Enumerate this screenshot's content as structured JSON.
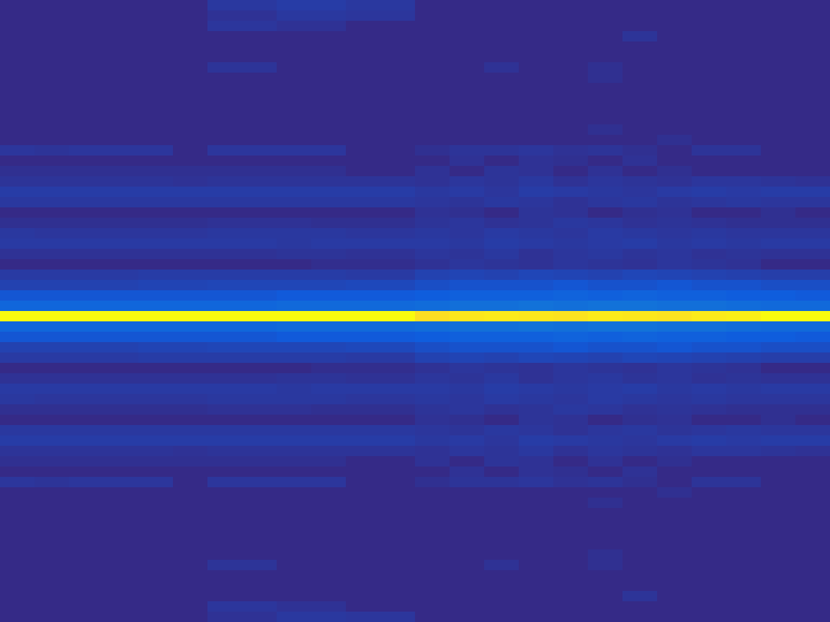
{
  "chart_data": {
    "type": "heatmap",
    "tick_labels": false,
    "color_range": [
      0,
      1
    ],
    "cells": [
      [
        0,
        0,
        0,
        0,
        0,
        0,
        0.035,
        0.035,
        0.045,
        0.045,
        0.035,
        0.035,
        0,
        0,
        0,
        0,
        0,
        0,
        0,
        0,
        0,
        0,
        0,
        0
      ],
      [
        0,
        0,
        0,
        0,
        0,
        0,
        0.02,
        0.02,
        0.035,
        0.035,
        0.03,
        0.03,
        0,
        0,
        0,
        0,
        0,
        0,
        0,
        0,
        0,
        0,
        0,
        0
      ],
      [
        0,
        0,
        0,
        0,
        0,
        0,
        0.03,
        0.03,
        0.02,
        0.02,
        0,
        0,
        0,
        0,
        0,
        0,
        0,
        0,
        0,
        0,
        0,
        0,
        0,
        0
      ],
      [
        0,
        0,
        0,
        0,
        0,
        0,
        0,
        0,
        0,
        0,
        0,
        0,
        0,
        0,
        0,
        0,
        0,
        0,
        0.025,
        0,
        0,
        0,
        0,
        0
      ],
      [
        0,
        0,
        0,
        0,
        0,
        0,
        0,
        0,
        0,
        0,
        0,
        0,
        0,
        0,
        0,
        0,
        0,
        0,
        0,
        0,
        0,
        0,
        0,
        0
      ],
      [
        0,
        0,
        0,
        0,
        0,
        0,
        0,
        0,
        0,
        0,
        0,
        0,
        0,
        0,
        0,
        0,
        0,
        0,
        0,
        0,
        0,
        0,
        0,
        0
      ],
      [
        0,
        0,
        0,
        0,
        0,
        0,
        0.025,
        0.025,
        0,
        0,
        0,
        0,
        0,
        0,
        0.02,
        0,
        0,
        0.015,
        0,
        0,
        0,
        0,
        0,
        0
      ],
      [
        0,
        0,
        0,
        0,
        0,
        0,
        0,
        0,
        0,
        0,
        0,
        0,
        0,
        0,
        0,
        0,
        0,
        0.015,
        0,
        0,
        0,
        0,
        0,
        0
      ],
      [
        0,
        0,
        0,
        0,
        0,
        0,
        0,
        0,
        0,
        0,
        0,
        0,
        0,
        0,
        0,
        0,
        0,
        0,
        0,
        0,
        0,
        0,
        0,
        0
      ],
      [
        0,
        0,
        0,
        0,
        0,
        0,
        0,
        0,
        0,
        0,
        0,
        0,
        0,
        0,
        0,
        0,
        0,
        0,
        0,
        0,
        0,
        0,
        0,
        0
      ],
      [
        0,
        0,
        0,
        0,
        0,
        0,
        0,
        0,
        0,
        0,
        0,
        0,
        0,
        0,
        0,
        0,
        0,
        0,
        0,
        0,
        0,
        0,
        0,
        0
      ],
      [
        0,
        0,
        0,
        0,
        0,
        0,
        0,
        0,
        0,
        0,
        0,
        0,
        0,
        0,
        0,
        0,
        0,
        0,
        0,
        0,
        0,
        0,
        0,
        0
      ],
      [
        0,
        0,
        0,
        0,
        0,
        0,
        0,
        0,
        0,
        0,
        0,
        0,
        0,
        0,
        0,
        0,
        0,
        0.015,
        0,
        0,
        0,
        0,
        0,
        0
      ],
      [
        0,
        0,
        0,
        0,
        0,
        0,
        0,
        0,
        0,
        0,
        0,
        0,
        0,
        0,
        0,
        0,
        0,
        0,
        0,
        0.015,
        0,
        0,
        0,
        0
      ],
      [
        0.03,
        0.025,
        0.03,
        0.03,
        0.03,
        0,
        0.03,
        0.03,
        0.03,
        0.03,
        0,
        0,
        0.015,
        0.025,
        0.025,
        0.03,
        0.02,
        0.025,
        0.015,
        0,
        0.025,
        0.025,
        0,
        0
      ],
      [
        0,
        0,
        0,
        0,
        0,
        0,
        0,
        0,
        0,
        0,
        0,
        0,
        0,
        0.02,
        0,
        0.02,
        0.015,
        0,
        0.02,
        0,
        0,
        0,
        0,
        0
      ],
      [
        0.015,
        0.015,
        0.015,
        0.015,
        0.015,
        0.015,
        0.015,
        0.015,
        0.015,
        0.015,
        0,
        0,
        0.02,
        0,
        0.025,
        0.02,
        0,
        0.02,
        0,
        0.015,
        0,
        0,
        0,
        0
      ],
      [
        0.025,
        0.025,
        0.025,
        0.025,
        0.025,
        0.02,
        0.025,
        0.025,
        0.025,
        0.025,
        0.025,
        0.025,
        0.02,
        0.03,
        0.025,
        0.035,
        0.02,
        0.03,
        0.025,
        0.02,
        0.03,
        0.03,
        0.025,
        0.02
      ],
      [
        0.045,
        0.045,
        0.045,
        0.045,
        0.045,
        0.045,
        0.045,
        0.045,
        0.045,
        0.045,
        0.045,
        0.045,
        0.035,
        0.04,
        0.03,
        0.045,
        0.04,
        0.035,
        0.03,
        0.04,
        0.045,
        0.04,
        0.045,
        0.045
      ],
      [
        0.035,
        0.035,
        0.035,
        0.035,
        0.035,
        0.035,
        0.035,
        0.035,
        0.035,
        0.035,
        0.035,
        0.035,
        0.03,
        0.025,
        0.035,
        0.03,
        0.02,
        0.03,
        0.035,
        0.025,
        0.03,
        0.035,
        0.03,
        0.03
      ],
      [
        0,
        0,
        0,
        0,
        0,
        0,
        0,
        0,
        0,
        0,
        0,
        0,
        0.02,
        0.015,
        0,
        0.025,
        0.02,
        0,
        0.015,
        0.02,
        0,
        0,
        0.015,
        0
      ],
      [
        0.015,
        0.015,
        0.015,
        0.015,
        0.015,
        0.015,
        0.02,
        0.02,
        0.02,
        0.015,
        0.015,
        0.015,
        0.025,
        0.03,
        0.02,
        0.025,
        0.035,
        0.03,
        0.02,
        0.025,
        0.02,
        0.015,
        0.015,
        0.015
      ],
      [
        0.035,
        0.03,
        0.03,
        0.03,
        0.03,
        0.03,
        0.035,
        0.035,
        0.035,
        0.035,
        0.03,
        0.03,
        0.035,
        0.03,
        0.04,
        0.035,
        0.03,
        0.04,
        0.035,
        0.03,
        0.035,
        0.03,
        0.03,
        0.03
      ],
      [
        0.04,
        0.04,
        0.04,
        0.04,
        0.04,
        0.04,
        0.04,
        0.04,
        0.035,
        0.04,
        0.04,
        0.04,
        0.04,
        0.035,
        0.045,
        0.04,
        0.035,
        0.04,
        0.045,
        0.035,
        0.04,
        0.035,
        0.04,
        0.04
      ],
      [
        0.02,
        0.02,
        0.02,
        0.02,
        0.02,
        0.02,
        0.02,
        0.02,
        0.025,
        0.025,
        0.02,
        0.02,
        0.03,
        0.025,
        0.035,
        0.02,
        0.03,
        0.035,
        0.025,
        0.03,
        0.02,
        0.025,
        0.02,
        0.02
      ],
      [
        0,
        0,
        0,
        0,
        0,
        0,
        0,
        0,
        0,
        0.01,
        0.01,
        0.01,
        0.02,
        0.03,
        0.025,
        0.02,
        0.03,
        0.025,
        0.02,
        0.03,
        0.025,
        0.02,
        0,
        0
      ],
      [
        0.04,
        0.04,
        0.04,
        0.04,
        0.045,
        0.045,
        0.045,
        0.045,
        0.045,
        0.045,
        0.04,
        0.04,
        0.06,
        0.065,
        0.06,
        0.07,
        0.065,
        0.06,
        0.07,
        0.065,
        0.06,
        0.055,
        0.05,
        0.05
      ],
      [
        0.06,
        0.06,
        0.06,
        0.06,
        0.065,
        0.065,
        0.07,
        0.07,
        0.07,
        0.07,
        0.075,
        0.075,
        0.09,
        0.1,
        0.1,
        0.1,
        0.11,
        0.1,
        0.1,
        0.11,
        0.1,
        0.1,
        0.09,
        0.09
      ],
      [
        0.11,
        0.11,
        0.11,
        0.11,
        0.11,
        0.11,
        0.11,
        0.11,
        0.12,
        0.12,
        0.12,
        0.12,
        0.13,
        0.14,
        0.14,
        0.14,
        0.15,
        0.14,
        0.15,
        0.14,
        0.14,
        0.13,
        0.13,
        0.12
      ],
      [
        0.16,
        0.16,
        0.16,
        0.16,
        0.16,
        0.16,
        0.16,
        0.16,
        0.17,
        0.17,
        0.17,
        0.17,
        0.18,
        0.19,
        0.19,
        0.2,
        0.19,
        0.2,
        0.2,
        0.19,
        0.19,
        0.18,
        0.17,
        0.17
      ],
      [
        1,
        1,
        1,
        1,
        1,
        1,
        1,
        1,
        1,
        1,
        1,
        1,
        0.93,
        0.95,
        0.96,
        0.95,
        0.94,
        0.96,
        0.95,
        0.94,
        0.96,
        0.97,
        1,
        1
      ],
      [
        0.16,
        0.16,
        0.16,
        0.16,
        0.16,
        0.16,
        0.16,
        0.16,
        0.17,
        0.17,
        0.17,
        0.17,
        0.18,
        0.19,
        0.19,
        0.2,
        0.19,
        0.2,
        0.2,
        0.19,
        0.19,
        0.18,
        0.17,
        0.17
      ],
      [
        0.11,
        0.11,
        0.11,
        0.11,
        0.11,
        0.11,
        0.11,
        0.11,
        0.12,
        0.12,
        0.12,
        0.12,
        0.13,
        0.14,
        0.14,
        0.14,
        0.15,
        0.14,
        0.15,
        0.14,
        0.14,
        0.13,
        0.13,
        0.12
      ],
      [
        0.06,
        0.06,
        0.06,
        0.06,
        0.065,
        0.065,
        0.07,
        0.07,
        0.07,
        0.07,
        0.075,
        0.075,
        0.09,
        0.1,
        0.1,
        0.1,
        0.11,
        0.1,
        0.1,
        0.11,
        0.1,
        0.1,
        0.09,
        0.09
      ],
      [
        0.04,
        0.04,
        0.04,
        0.04,
        0.045,
        0.045,
        0.045,
        0.045,
        0.045,
        0.045,
        0.04,
        0.04,
        0.06,
        0.065,
        0.06,
        0.07,
        0.065,
        0.06,
        0.07,
        0.065,
        0.06,
        0.055,
        0.05,
        0.05
      ],
      [
        0,
        0,
        0,
        0,
        0,
        0,
        0,
        0,
        0,
        0.01,
        0.01,
        0.01,
        0.02,
        0.03,
        0.025,
        0.02,
        0.03,
        0.025,
        0.02,
        0.03,
        0.025,
        0.02,
        0,
        0
      ],
      [
        0.02,
        0.02,
        0.02,
        0.02,
        0.02,
        0.02,
        0.02,
        0.02,
        0.025,
        0.025,
        0.02,
        0.02,
        0.03,
        0.025,
        0.035,
        0.02,
        0.03,
        0.035,
        0.025,
        0.03,
        0.02,
        0.025,
        0.02,
        0.02
      ],
      [
        0.04,
        0.04,
        0.04,
        0.04,
        0.04,
        0.04,
        0.04,
        0.04,
        0.035,
        0.04,
        0.04,
        0.04,
        0.04,
        0.035,
        0.045,
        0.04,
        0.035,
        0.04,
        0.045,
        0.035,
        0.04,
        0.035,
        0.04,
        0.04
      ],
      [
        0.035,
        0.03,
        0.03,
        0.03,
        0.03,
        0.03,
        0.035,
        0.035,
        0.035,
        0.035,
        0.03,
        0.03,
        0.035,
        0.03,
        0.04,
        0.035,
        0.03,
        0.04,
        0.035,
        0.03,
        0.035,
        0.03,
        0.03,
        0.03
      ],
      [
        0.015,
        0.015,
        0.015,
        0.015,
        0.015,
        0.015,
        0.02,
        0.02,
        0.02,
        0.015,
        0.015,
        0.015,
        0.025,
        0.03,
        0.02,
        0.025,
        0.035,
        0.03,
        0.02,
        0.025,
        0.02,
        0.015,
        0.015,
        0.015
      ],
      [
        0,
        0,
        0,
        0,
        0,
        0,
        0,
        0,
        0,
        0,
        0,
        0,
        0.02,
        0.015,
        0,
        0.025,
        0.02,
        0,
        0.015,
        0.02,
        0,
        0,
        0.015,
        0
      ],
      [
        0.035,
        0.035,
        0.035,
        0.035,
        0.035,
        0.035,
        0.035,
        0.035,
        0.035,
        0.035,
        0.035,
        0.035,
        0.03,
        0.025,
        0.035,
        0.03,
        0.02,
        0.03,
        0.035,
        0.025,
        0.03,
        0.035,
        0.03,
        0.03
      ],
      [
        0.045,
        0.045,
        0.045,
        0.045,
        0.045,
        0.045,
        0.045,
        0.045,
        0.045,
        0.045,
        0.045,
        0.045,
        0.035,
        0.04,
        0.03,
        0.045,
        0.04,
        0.035,
        0.03,
        0.04,
        0.045,
        0.04,
        0.045,
        0.045
      ],
      [
        0.025,
        0.025,
        0.025,
        0.025,
        0.025,
        0.02,
        0.025,
        0.025,
        0.025,
        0.025,
        0.025,
        0.025,
        0.02,
        0.03,
        0.025,
        0.035,
        0.02,
        0.03,
        0.025,
        0.02,
        0.03,
        0.03,
        0.025,
        0.02
      ],
      [
        0.015,
        0.015,
        0.015,
        0.015,
        0.015,
        0.015,
        0.015,
        0.015,
        0.015,
        0.015,
        0,
        0,
        0.02,
        0,
        0.025,
        0.02,
        0,
        0.02,
        0,
        0.015,
        0,
        0,
        0,
        0
      ],
      [
        0,
        0,
        0,
        0,
        0,
        0,
        0,
        0,
        0,
        0,
        0,
        0,
        0,
        0.02,
        0,
        0.02,
        0.015,
        0,
        0.02,
        0,
        0,
        0,
        0,
        0
      ],
      [
        0.03,
        0.025,
        0.03,
        0.03,
        0.03,
        0,
        0.03,
        0.03,
        0.03,
        0.03,
        0,
        0,
        0.015,
        0.025,
        0.025,
        0.03,
        0.02,
        0.025,
        0.015,
        0,
        0.025,
        0.025,
        0,
        0
      ],
      [
        0,
        0,
        0,
        0,
        0,
        0,
        0,
        0,
        0,
        0,
        0,
        0,
        0,
        0,
        0,
        0,
        0,
        0,
        0,
        0.015,
        0,
        0,
        0,
        0
      ],
      [
        0,
        0,
        0,
        0,
        0,
        0,
        0,
        0,
        0,
        0,
        0,
        0,
        0,
        0,
        0,
        0,
        0,
        0.015,
        0,
        0,
        0,
        0,
        0,
        0
      ],
      [
        0,
        0,
        0,
        0,
        0,
        0,
        0,
        0,
        0,
        0,
        0,
        0,
        0,
        0,
        0,
        0,
        0,
        0,
        0,
        0,
        0,
        0,
        0,
        0
      ],
      [
        0,
        0,
        0,
        0,
        0,
        0,
        0,
        0,
        0,
        0,
        0,
        0,
        0,
        0,
        0,
        0,
        0,
        0,
        0,
        0,
        0,
        0,
        0,
        0
      ],
      [
        0,
        0,
        0,
        0,
        0,
        0,
        0,
        0,
        0,
        0,
        0,
        0,
        0,
        0,
        0,
        0,
        0,
        0,
        0,
        0,
        0,
        0,
        0,
        0
      ],
      [
        0,
        0,
        0,
        0,
        0,
        0,
        0,
        0,
        0,
        0,
        0,
        0,
        0,
        0,
        0,
        0,
        0,
        0,
        0,
        0,
        0,
        0,
        0,
        0
      ],
      [
        0,
        0,
        0,
        0,
        0,
        0,
        0,
        0,
        0,
        0,
        0,
        0,
        0,
        0,
        0,
        0,
        0,
        0.015,
        0,
        0,
        0,
        0,
        0,
        0
      ],
      [
        0,
        0,
        0,
        0,
        0,
        0,
        0.025,
        0.025,
        0,
        0,
        0,
        0,
        0,
        0,
        0.02,
        0,
        0,
        0.015,
        0,
        0,
        0,
        0,
        0,
        0
      ],
      [
        0,
        0,
        0,
        0,
        0,
        0,
        0,
        0,
        0,
        0,
        0,
        0,
        0,
        0,
        0,
        0,
        0,
        0,
        0,
        0,
        0,
        0,
        0,
        0
      ],
      [
        0,
        0,
        0,
        0,
        0,
        0,
        0,
        0,
        0,
        0,
        0,
        0,
        0,
        0,
        0,
        0,
        0,
        0,
        0,
        0,
        0,
        0,
        0,
        0
      ],
      [
        0,
        0,
        0,
        0,
        0,
        0,
        0,
        0,
        0,
        0,
        0,
        0,
        0,
        0,
        0,
        0,
        0,
        0,
        0.025,
        0,
        0,
        0,
        0,
        0
      ],
      [
        0,
        0,
        0,
        0,
        0,
        0,
        0.03,
        0.03,
        0.02,
        0.02,
        0,
        0,
        0,
        0,
        0,
        0,
        0,
        0,
        0,
        0,
        0,
        0,
        0,
        0
      ],
      [
        0,
        0,
        0,
        0,
        0,
        0,
        0.02,
        0.02,
        0.035,
        0.035,
        0.03,
        0.03,
        0,
        0,
        0,
        0,
        0,
        0,
        0,
        0,
        0,
        0,
        0,
        0
      ]
    ]
  }
}
